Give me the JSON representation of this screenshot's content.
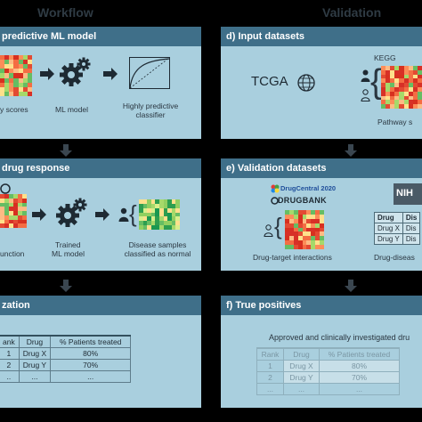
{
  "columns": {
    "workflow": "Workflow",
    "validation": "Validation"
  },
  "panels": {
    "a": {
      "title": "predictive ML model",
      "labels": [
        "y scores",
        "ML model",
        "Highly predictive",
        "classifier"
      ]
    },
    "b": {
      "title": "drug response",
      "labels": [
        "Trained",
        "ML model",
        "Disease samples",
        "classified as normal",
        "unction"
      ]
    },
    "c": {
      "title": "zation",
      "table": {
        "headers": [
          "ank",
          "Drug",
          "% Patients treated"
        ],
        "rows": [
          [
            "1",
            "Drug X",
            "80%"
          ],
          [
            "2",
            "Drug Y",
            "70%"
          ],
          [
            "..",
            "...",
            "..."
          ]
        ]
      }
    },
    "d": {
      "title": "d) Input datasets",
      "tcga": "TCGA",
      "kegg": "KEGG",
      "caption": "Pathway s"
    },
    "e": {
      "title": "e) Validation datasets",
      "drugcentral": "DrugCentral 2020",
      "drugbank": "DRUGBANK",
      "nih": "NIH",
      "caption_left": "Drug-target interactions",
      "caption_right": "Drug-diseas",
      "table": {
        "headers": [
          "Drug",
          "Dis"
        ],
        "rows": [
          [
            "Drug X",
            "Dis"
          ],
          [
            "Drug Y",
            "Dis"
          ]
        ]
      }
    },
    "f": {
      "title": "f) True positives",
      "caption": "Approved and clinically investigated dru",
      "table": {
        "headers": [
          "Rank",
          "Drug",
          "% Patients treated"
        ],
        "rows": [
          [
            "1",
            "Drug X",
            "80%"
          ],
          [
            "2",
            "Drug Y",
            "70%"
          ],
          [
            "...",
            "...",
            "..."
          ]
        ]
      }
    }
  },
  "colors": {
    "panel_head": "#3f6f89",
    "panel_body": "#a9cfde",
    "heat_red": "#d7301f",
    "heat_yellow": "#fdd835",
    "heat_green": "#2e9e4f"
  }
}
